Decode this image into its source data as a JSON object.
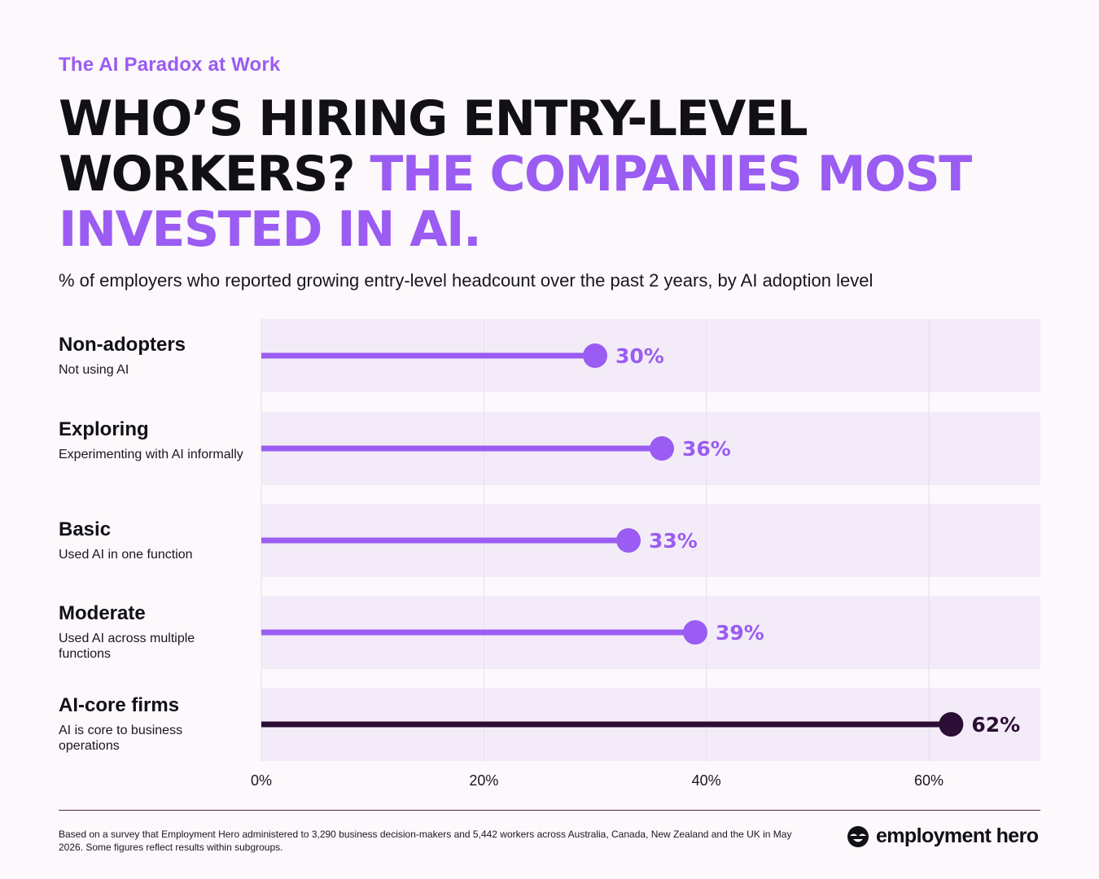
{
  "header": {
    "eyebrow": "The AI Paradox at Work",
    "headline_dark": "WHO’S HIRING ENTRY-LEVEL WORKERS?",
    "headline_accent": "THE COMPANIES MOST INVESTED IN AI.",
    "subtitle": "% of employers who reported growing entry-level headcount over the past 2 years, by AI adoption level"
  },
  "rows": [
    {
      "name": "Non-adopters",
      "desc": "Not using AI"
    },
    {
      "name": "Exploring",
      "desc": "Experimenting with AI informally"
    },
    {
      "name": "Basic",
      "desc": "Used AI in one function"
    },
    {
      "name": "Moderate",
      "desc": "Used AI across multiple functions"
    },
    {
      "name": "AI-core firms",
      "desc": "AI is core to business operations"
    }
  ],
  "chart_data": {
    "type": "lollipop",
    "categories": [
      "Non-adopters",
      "Exploring",
      "Basic",
      "Moderate",
      "AI-core firms"
    ],
    "values": [
      30,
      36,
      33,
      39,
      62
    ],
    "value_labels": [
      "30%",
      "36%",
      "33%",
      "39%",
      "62%"
    ],
    "xlim": [
      0,
      70
    ],
    "ticks": [
      0,
      20,
      40,
      60
    ],
    "tick_labels": [
      "0%",
      "20%",
      "40%",
      "60%"
    ],
    "grid": true,
    "colors": {
      "default": "#9a5cf2",
      "highlight": "#2b0d35",
      "band": "#f3ecf8",
      "grid": "#e6ddec"
    },
    "highlight_index": 4
  },
  "footer": {
    "note": "Based on a survey that Employment Hero administered to 3,290 business decision-makers and 5,442 workers across Australia, Canada, New Zealand and the UK in May 2026. Some figures reflect results within subgroups.",
    "brand": "employment hero"
  }
}
